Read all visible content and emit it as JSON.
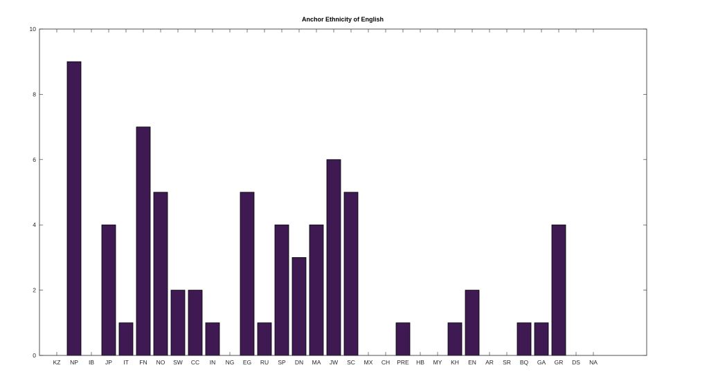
{
  "chart_data": {
    "type": "bar",
    "title": "Anchor Ethnicity of English",
    "xlabel": "",
    "ylabel": "",
    "categories": [
      "KZ",
      "NP",
      "IB",
      "JP",
      "IT",
      "FN",
      "NO",
      "SW",
      "CC",
      "IN",
      "NG",
      "EG",
      "RU",
      "SP",
      "DN",
      "MA",
      "JW",
      "SC",
      "MX",
      "CH",
      "PRE",
      "HB",
      "MY",
      "KH",
      "EN",
      "AR",
      "SR",
      "BQ",
      "GA",
      "GR",
      "DS",
      "NA"
    ],
    "values": [
      0,
      9,
      0,
      4,
      1,
      7,
      5,
      2,
      2,
      1,
      0,
      5,
      1,
      4,
      3,
      4,
      6,
      5,
      0,
      0,
      1,
      0,
      0,
      1,
      2,
      0,
      0,
      1,
      1,
      4,
      0,
      0
    ],
    "ylim": [
      0,
      10
    ],
    "yticks": [
      0,
      2,
      4,
      6,
      8,
      10
    ],
    "grid": false,
    "legend": "none",
    "bar_color": "#3f1a52"
  }
}
